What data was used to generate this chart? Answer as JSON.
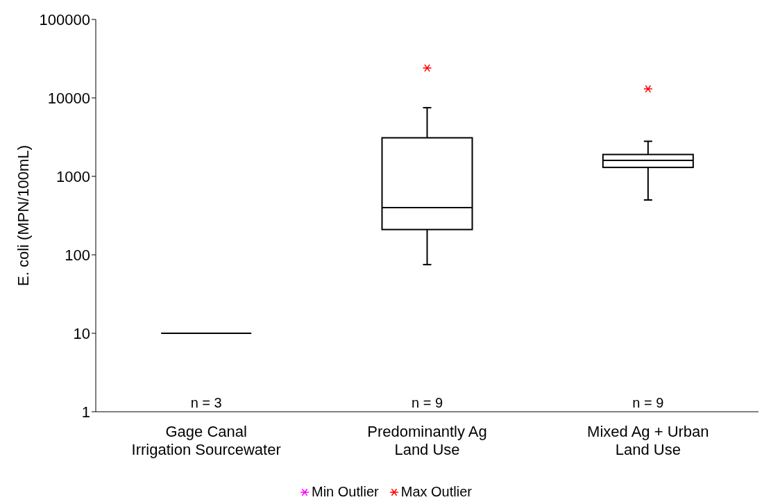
{
  "chart_data": {
    "type": "box",
    "ylabel": "E. coli (MPN/100mL)",
    "categories": [
      "Gage Canal\nIrrigation Sourcewater",
      "Predominantly Ag\nLand Use",
      "Mixed Ag + Urban\nLand Use"
    ],
    "log": true,
    "ylim": [
      1,
      100000
    ],
    "yticks": [
      1,
      10,
      100,
      1000,
      10000,
      100000
    ],
    "grid": false,
    "legend": "bottom",
    "series": [
      {
        "color": "#000000",
        "boxes": [
          {
            "low": 10,
            "q1": 10,
            "median": 10,
            "q3": 10,
            "high": 10
          },
          {
            "low": 75,
            "q1": 210,
            "median": 400,
            "q3": 3100,
            "high": 7500
          },
          {
            "low": 500,
            "q1": 1300,
            "median": 1600,
            "q3": 1900,
            "high": 2800
          }
        ]
      },
      {
        "type": "scatter",
        "name": "Min Outlier",
        "color": "#ff00ff",
        "marker": "cross",
        "values": [
          null,
          null,
          null
        ]
      },
      {
        "type": "scatter",
        "name": "Max Outlier",
        "color": "#ff0000",
        "marker": "cross",
        "values": [
          null,
          24000,
          13000
        ]
      }
    ],
    "annotations": [
      "n = 3",
      "n = 9",
      "n = 9"
    ]
  }
}
